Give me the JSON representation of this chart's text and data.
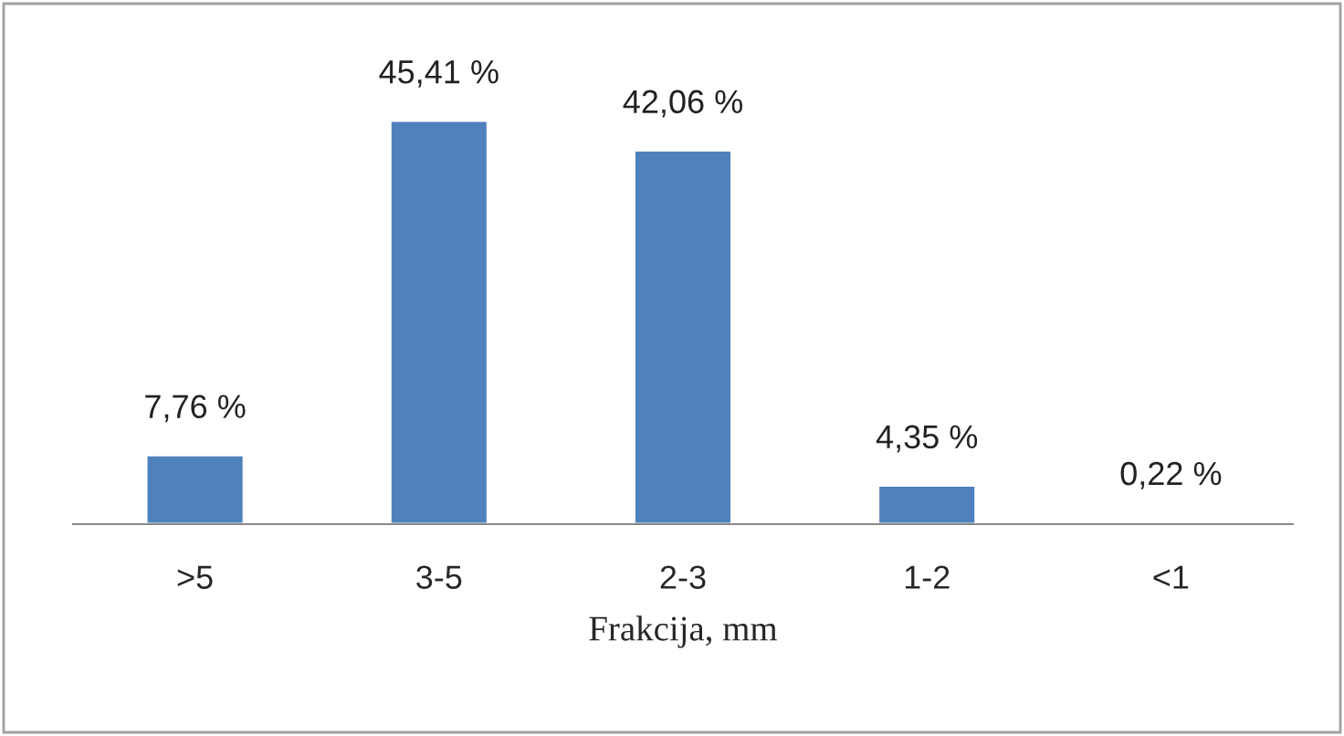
{
  "chart_data": {
    "type": "bar",
    "xlabel": "Frakcija, mm",
    "categories": [
      ">5",
      "3-5",
      "2-3",
      "1-2",
      "<1"
    ],
    "values": [
      7.76,
      45.41,
      42.06,
      4.35,
      0.22
    ],
    "value_labels": [
      "7,76 %",
      "45,41 %",
      "42,06 %",
      "4,35 %",
      "0,22 %"
    ],
    "color": "#4f81bd",
    "grid": false,
    "legend": false
  }
}
